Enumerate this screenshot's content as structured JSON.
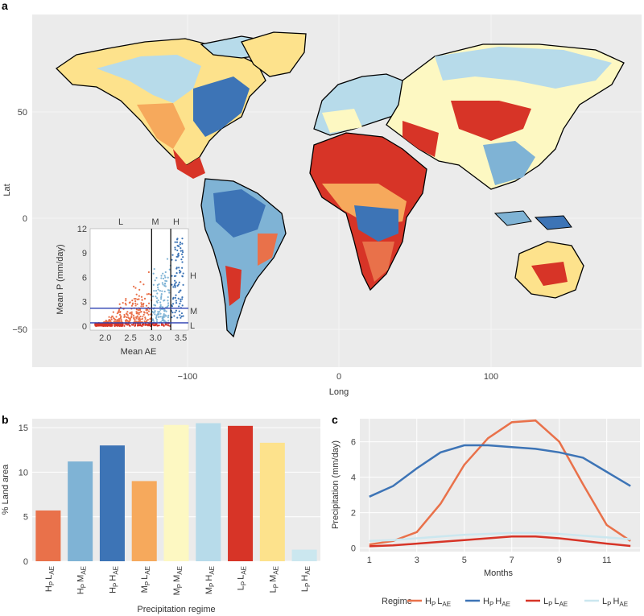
{
  "colors": {
    "HP_LAE": "#e9714a",
    "HP_MAE": "#7fb3d5",
    "HP_HAE": "#3d74b6",
    "MP_LAE": "#f6a95c",
    "MP_MAE": "#fdf8c2",
    "MP_HAE": "#b7dbea",
    "LP_LAE": "#d73427",
    "LP_MAE": "#fde28c",
    "LP_HAE": "#cbe7ef",
    "panel_bg": "#ebebeb"
  },
  "chart_data": [
    {
      "panel": "a",
      "type": "heatmap",
      "title": "",
      "xlabel": "Long",
      "ylabel": "Lat",
      "xticks": [
        "−100",
        "0",
        "100"
      ],
      "yticks": [
        "50",
        "0",
        "−50"
      ],
      "inset": {
        "type": "scatter",
        "xlabel": "Mean AE",
        "ylabel": "Mean P (mm/day)",
        "xticks": [
          "2.0",
          "2.5",
          "3.0",
          "3.5"
        ],
        "yticks": [
          "0",
          "3",
          "6",
          "9",
          "12"
        ],
        "xlim": [
          1.7,
          3.65
        ],
        "ylim": [
          -0.5,
          12
        ],
        "vlines": [
          2.92,
          3.3
        ],
        "hlines": [
          0.4,
          2.2
        ],
        "col_labels": [
          "L",
          "M",
          "H"
        ],
        "row_labels": [
          "H",
          "M",
          "L"
        ]
      }
    },
    {
      "panel": "b",
      "type": "bar",
      "title": "",
      "xlabel": "Precipitation regime",
      "ylabel": "% Land area",
      "ylim": [
        0,
        16
      ],
      "yticks": [
        "0",
        "5",
        "10",
        "15"
      ],
      "categories": [
        {
          "P": "H",
          "AE": "L",
          "PS": "P",
          "AES": "AE"
        },
        {
          "P": "H",
          "AE": "M",
          "PS": "P",
          "AES": "AE"
        },
        {
          "P": "H",
          "AE": "H",
          "PS": "P",
          "AES": "AE"
        },
        {
          "P": "M",
          "AE": "L",
          "PS": "P",
          "AES": "AE"
        },
        {
          "P": "M",
          "AE": "M",
          "PS": "P",
          "AES": "AE"
        },
        {
          "P": "M",
          "AE": "H",
          "PS": "P",
          "AES": "AE"
        },
        {
          "P": "L",
          "AE": "L",
          "PS": "P",
          "AES": "AE"
        },
        {
          "P": "L",
          "AE": "M",
          "PS": "P",
          "AES": "AE"
        },
        {
          "P": "L",
          "AE": "H",
          "PS": "P",
          "AES": "AE"
        }
      ],
      "values": [
        5.7,
        11.2,
        13.0,
        9.0,
        15.3,
        15.5,
        15.2,
        13.3,
        1.3
      ],
      "bar_colors": [
        "#e9714a",
        "#7fb3d5",
        "#3d74b6",
        "#f6a95c",
        "#fdf8c2",
        "#b7dbea",
        "#d73427",
        "#fde28c",
        "#cbe7ef"
      ]
    },
    {
      "panel": "c",
      "type": "line",
      "title": "",
      "xlabel": "Months",
      "ylabel": "Precipitation (mm/day)",
      "xlim": [
        0.6,
        12.4
      ],
      "ylim": [
        -0.2,
        7.3
      ],
      "xticks": [
        "1",
        "3",
        "5",
        "7",
        "9",
        "11"
      ],
      "yticks": [
        "0",
        "2",
        "4",
        "6"
      ],
      "x": [
        1,
        2,
        3,
        4,
        5,
        6,
        7,
        8,
        9,
        10,
        11,
        12
      ],
      "series": [
        {
          "name": "HP LAE",
          "P": "H",
          "AE": "L",
          "color": "#e9714a",
          "values": [
            0.2,
            0.4,
            0.9,
            2.5,
            4.7,
            6.2,
            7.1,
            7.2,
            6.0,
            3.6,
            1.3,
            0.4
          ]
        },
        {
          "name": "HP HAE",
          "P": "H",
          "AE": "H",
          "color": "#3d74b6",
          "values": [
            2.9,
            3.5,
            4.5,
            5.4,
            5.8,
            5.8,
            5.7,
            5.6,
            5.4,
            5.1,
            4.3,
            3.5
          ]
        },
        {
          "name": "LP LAE",
          "P": "L",
          "AE": "L",
          "color": "#d73427",
          "values": [
            0.1,
            0.15,
            0.25,
            0.35,
            0.45,
            0.55,
            0.65,
            0.65,
            0.55,
            0.4,
            0.25,
            0.12
          ]
        },
        {
          "name": "LP HAE",
          "P": "L",
          "AE": "H",
          "color": "#cbe7ef",
          "values": [
            0.4,
            0.45,
            0.55,
            0.65,
            0.75,
            0.8,
            0.85,
            0.85,
            0.8,
            0.7,
            0.6,
            0.5
          ]
        }
      ],
      "legend_title": "Regime",
      "legend_position": "bottom"
    }
  ],
  "labels": {
    "panel_a": "a",
    "panel_b": "b",
    "panel_c": "c"
  }
}
